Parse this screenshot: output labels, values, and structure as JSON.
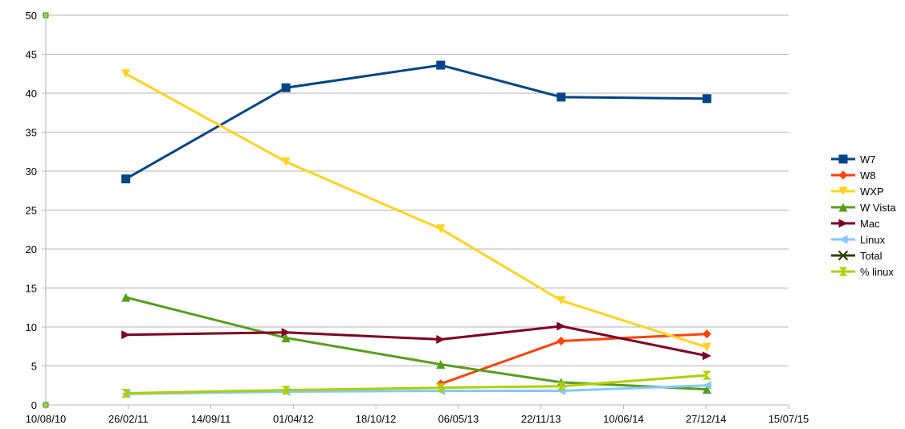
{
  "chart_data": {
    "type": "line",
    "title": "",
    "xlabel": "",
    "ylabel": "",
    "x_axis": {
      "type": "date",
      "range": [
        "2010-08-10",
        "2015-07-15"
      ],
      "tick_labels": [
        "10/08/10",
        "26/02/11",
        "14/09/11",
        "01/04/12",
        "18/10/12",
        "06/05/13",
        "22/11/13",
        "10/06/14",
        "27/12/14",
        "15/07/15"
      ]
    },
    "y_axis": {
      "range": [
        0,
        50
      ],
      "tick_labels": [
        "0",
        "5",
        "10",
        "15",
        "20",
        "25",
        "30",
        "35",
        "40",
        "45",
        "50"
      ]
    },
    "grid": "horizontal",
    "legend_position": "right",
    "series": [
      {
        "name": "W7",
        "color": "#004586",
        "marker": "square",
        "points": [
          [
            "2011-02-20",
            29.0
          ],
          [
            "2012-03-14",
            40.7
          ],
          [
            "2013-03-24",
            43.6
          ],
          [
            "2014-01-10",
            39.5
          ],
          [
            "2014-12-29",
            39.3
          ]
        ]
      },
      {
        "name": "W8",
        "color": "#ff420e",
        "marker": "diamond",
        "points": [
          [
            "2013-03-24",
            2.7
          ],
          [
            "2014-01-10",
            8.2
          ],
          [
            "2014-12-29",
            9.1
          ]
        ]
      },
      {
        "name": "WXP",
        "color": "#ffd320",
        "marker": "triangle-down",
        "points": [
          [
            "2011-02-20",
            42.5
          ],
          [
            "2012-03-14",
            31.2
          ],
          [
            "2013-03-24",
            22.6
          ],
          [
            "2014-01-10",
            13.4
          ],
          [
            "2014-12-29",
            7.4
          ]
        ]
      },
      {
        "name": "W Vista",
        "color": "#579d1c",
        "marker": "triangle-up",
        "points": [
          [
            "2011-02-20",
            13.8
          ],
          [
            "2012-03-14",
            8.6
          ],
          [
            "2013-03-24",
            5.2
          ],
          [
            "2014-01-10",
            2.9
          ],
          [
            "2014-12-29",
            2.0
          ]
        ]
      },
      {
        "name": "Mac",
        "color": "#7e0021",
        "marker": "triangle-right",
        "points": [
          [
            "2011-02-20",
            9.0
          ],
          [
            "2012-03-14",
            9.3
          ],
          [
            "2013-03-24",
            8.4
          ],
          [
            "2014-01-10",
            10.1
          ],
          [
            "2014-12-29",
            6.3
          ]
        ]
      },
      {
        "name": "Linux",
        "color": "#83caff",
        "marker": "triangle-left",
        "points": [
          [
            "2011-02-20",
            1.4
          ],
          [
            "2012-03-14",
            1.7
          ],
          [
            "2013-03-24",
            1.8
          ],
          [
            "2014-01-10",
            1.8
          ],
          [
            "2014-12-29",
            2.5
          ]
        ]
      },
      {
        "name": "Total",
        "color": "#314004",
        "marker": "x",
        "points": []
      },
      {
        "name": "% linux",
        "color": "#aecf00",
        "marker": "hourglass",
        "points": [
          [
            "2011-02-20",
            1.5
          ],
          [
            "2012-03-14",
            1.9
          ],
          [
            "2013-03-24",
            2.2
          ],
          [
            "2014-01-10",
            2.4
          ],
          [
            "2014-12-29",
            3.8
          ]
        ]
      }
    ]
  }
}
